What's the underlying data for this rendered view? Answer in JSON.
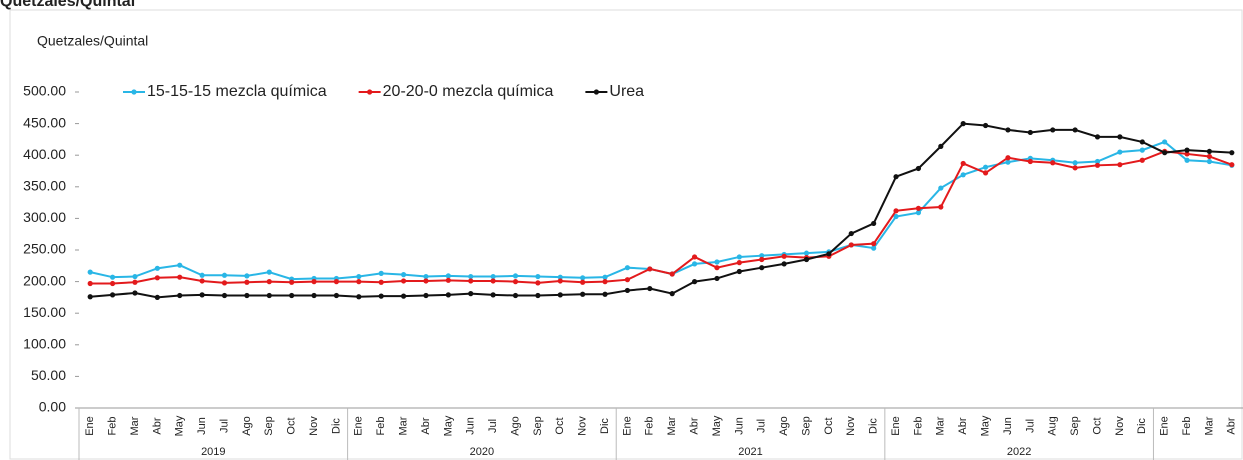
{
  "chart_data": {
    "type": "line",
    "title": "Quetzales/Quintal",
    "y_label": "Quetzales/Quintal",
    "categories": [
      "Ene",
      "Feb",
      "Mar",
      "Abr",
      "May",
      "Jun",
      "Jul",
      "Ago",
      "Sep",
      "Oct",
      "Nov",
      "Dic",
      "Ene",
      "Feb",
      "Mar",
      "Abr",
      "May",
      "Jun",
      "Jul",
      "Ago",
      "Sep",
      "Oct",
      "Nov",
      "Dic",
      "Ene",
      "Feb",
      "Mar",
      "Abr",
      "May",
      "Jun",
      "Jul",
      "Ago",
      "Sep",
      "Oct",
      "Nov",
      "Dic",
      "Ene",
      "Feb",
      "Mar",
      "Abr",
      "May",
      "Jun",
      "Jul",
      "Aug",
      "Sep",
      "Oct",
      "Nov",
      "Dic",
      "Ene",
      "Feb",
      "Mar",
      "Abr"
    ],
    "year_labels": [
      "2019",
      "2020",
      "2021",
      "2022"
    ],
    "series": [
      {
        "name": "15-15-15 mezcla química",
        "color": "#29b6e6",
        "values": [
          215,
          207,
          208,
          221,
          226,
          210,
          210,
          209,
          215,
          204,
          205,
          205,
          208,
          213,
          211,
          208,
          209,
          208,
          208,
          209,
          208,
          207,
          206,
          207,
          222,
          220,
          212,
          228,
          231,
          239,
          241,
          243,
          245,
          247,
          258,
          253,
          303,
          309,
          348,
          369,
          381,
          389,
          395,
          392,
          388,
          390,
          405,
          408,
          421,
          392,
          390,
          384
        ]
      },
      {
        "name": "20-20-0 mezcla química",
        "color": "#e31a1c",
        "values": [
          197,
          197,
          199,
          206,
          207,
          201,
          198,
          199,
          200,
          199,
          200,
          200,
          200,
          199,
          201,
          201,
          202,
          201,
          201,
          200,
          198,
          201,
          199,
          200,
          203,
          220,
          212,
          239,
          222,
          230,
          235,
          240,
          238,
          240,
          258,
          260,
          312,
          316,
          318,
          387,
          372,
          396,
          390,
          388,
          380,
          384,
          385,
          392,
          406,
          402,
          398,
          385
        ]
      },
      {
        "name": "Urea",
        "color": "#111111",
        "values": [
          176,
          179,
          182,
          175,
          178,
          179,
          178,
          178,
          178,
          178,
          178,
          178,
          176,
          177,
          177,
          178,
          179,
          181,
          179,
          178,
          178,
          179,
          180,
          180,
          186,
          189,
          181,
          200,
          205,
          216,
          222,
          228,
          235,
          244,
          276,
          292,
          366,
          379,
          414,
          450,
          447,
          440,
          436,
          440,
          440,
          429,
          429,
          421,
          404,
          408,
          406,
          404
        ]
      }
    ],
    "ylim": [
      0,
      500
    ],
    "yticks": [
      {
        "value": 0,
        "label": "0.00"
      },
      {
        "value": 50,
        "label": "50.00"
      },
      {
        "value": 100,
        "label": "100.00"
      },
      {
        "value": 150,
        "label": "150.00"
      },
      {
        "value": 200,
        "label": "200.00"
      },
      {
        "value": 250,
        "label": "250.00"
      },
      {
        "value": 300,
        "label": "300.00"
      },
      {
        "value": 350,
        "label": "350.00"
      },
      {
        "value": 400,
        "label": "400.00"
      },
      {
        "value": 450,
        "label": "450.00"
      },
      {
        "value": 500,
        "label": "500.00"
      }
    ],
    "grid": false,
    "legend": "top"
  }
}
